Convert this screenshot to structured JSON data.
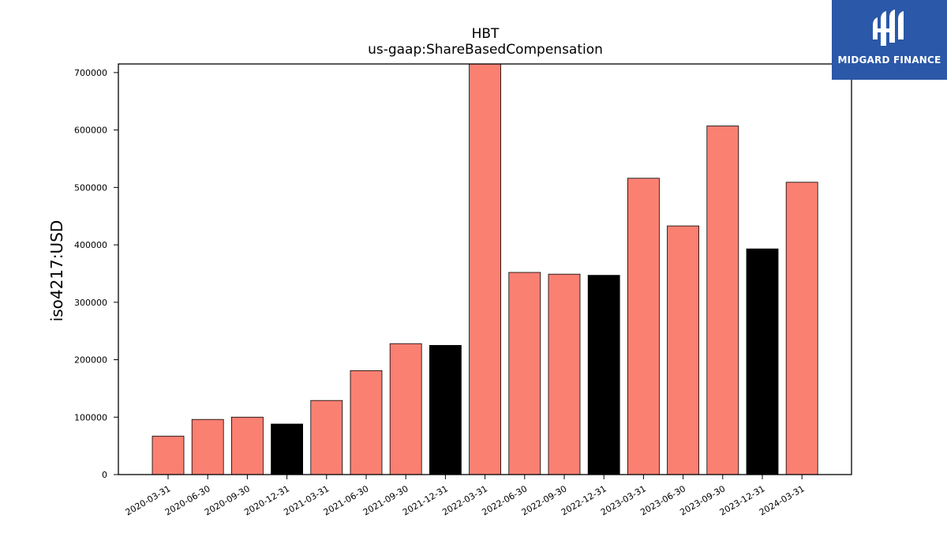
{
  "logo": {
    "text": "MIDGARD FINANCE",
    "icon": "midgard-logo-icon",
    "background": "#2b58a8"
  },
  "chart_data": {
    "type": "bar",
    "title": "HBT",
    "subtitle": "us-gaap:ShareBasedCompensation",
    "xlabel": "",
    "ylabel": "iso4217:USD",
    "ylim": [
      0,
      715000
    ],
    "yticks": [
      0,
      100000,
      200000,
      300000,
      400000,
      500000,
      600000,
      700000
    ],
    "grid": false,
    "categories": [
      "2020-03-31",
      "2020-06-30",
      "2020-09-30",
      "2020-12-31",
      "2021-03-31",
      "2021-06-30",
      "2021-09-30",
      "2021-12-31",
      "2022-03-31",
      "2022-06-30",
      "2022-09-30",
      "2022-12-31",
      "2023-03-31",
      "2023-06-30",
      "2023-09-30",
      "2023-12-31",
      "2024-03-31"
    ],
    "values": [
      67000,
      96000,
      100000,
      88000,
      129000,
      181000,
      228000,
      225000,
      720000,
      352000,
      349000,
      347000,
      516000,
      433000,
      607000,
      393000,
      509000
    ],
    "bar_colors": [
      "#fa8072",
      "#fa8072",
      "#fa8072",
      "#000000",
      "#fa8072",
      "#fa8072",
      "#fa8072",
      "#000000",
      "#fa8072",
      "#fa8072",
      "#fa8072",
      "#000000",
      "#fa8072",
      "#fa8072",
      "#fa8072",
      "#000000",
      "#fa8072"
    ]
  }
}
